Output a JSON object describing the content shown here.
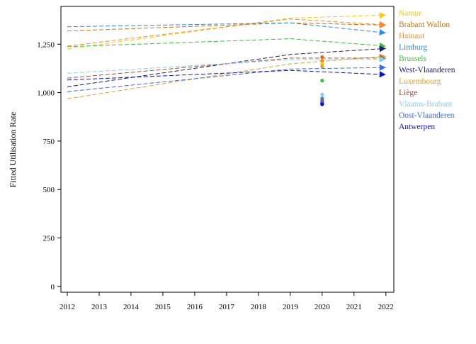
{
  "chart_data": {
    "type": "line",
    "title": "",
    "xlabel": "",
    "ylabel": "Fitted Utilisation Rate",
    "xlim": [
      2011.8,
      2022.25
    ],
    "ylim": [
      -30,
      1445
    ],
    "x_ticks": [
      2012,
      2013,
      2014,
      2015,
      2016,
      2017,
      2018,
      2019,
      2020,
      2021,
      2022
    ],
    "x_tick_labels": [
      "2012",
      "2013",
      "2014",
      "2015",
      "2016",
      "2017",
      "2018",
      "2019",
      "2020",
      "2021",
      "2022"
    ],
    "y_ticks": [
      0,
      250,
      500,
      750,
      1000,
      1250
    ],
    "y_tick_labels": [
      "0",
      "250",
      "500",
      "750",
      "1,000",
      "1,250"
    ],
    "grid": false,
    "legend_position": "right",
    "line_style": "dashed",
    "end_marker": "arrow",
    "x": [
      2012,
      2019,
      2022
    ],
    "series": [
      {
        "name": "Namur",
        "color": "#FFC90E",
        "values": [
          1225,
          1385,
          1400
        ],
        "point_2020": 1148
      },
      {
        "name": "Brabant Wallon",
        "color": "#D0710A",
        "values": [
          1318,
          1360,
          1348
        ],
        "point_2020": 1183
      },
      {
        "name": "Hainaut",
        "color": "#F28C28",
        "values": [
          1240,
          1380,
          1350
        ],
        "point_2020": 1165
      },
      {
        "name": "Limburg",
        "color": "#2E8BDE",
        "values": [
          1340,
          1360,
          1308
        ],
        "point_2020": 970
      },
      {
        "name": "Brussels",
        "color": "#3CBF3C",
        "values": [
          1237,
          1278,
          1240
        ],
        "point_2020": 1062
      },
      {
        "name": "West-Vlaanderen",
        "color": "#1A1A7A",
        "values": [
          1030,
          1197,
          1228
        ],
        "point_2020": 945
      },
      {
        "name": "Luxembourg",
        "color": "#E0A030",
        "values": [
          968,
          1148,
          1188
        ],
        "point_2020": 1135
      },
      {
        "name": "Liège",
        "color": "#A0522D",
        "values": [
          1075,
          1178,
          1178
        ],
        "point_2020": 958
      },
      {
        "name": "Vlaams-Brabant",
        "color": "#87CEEB",
        "values": [
          1100,
          1170,
          1172
        ],
        "point_2020": 990
      },
      {
        "name": "Oost-Vlaanderen",
        "color": "#4169E1",
        "values": [
          1005,
          1122,
          1130
        ],
        "point_2020": 950
      },
      {
        "name": "Antwerpen",
        "color": "#1010D0",
        "values": [
          1065,
          1115,
          1093
        ],
        "point_2020": 940
      }
    ]
  }
}
